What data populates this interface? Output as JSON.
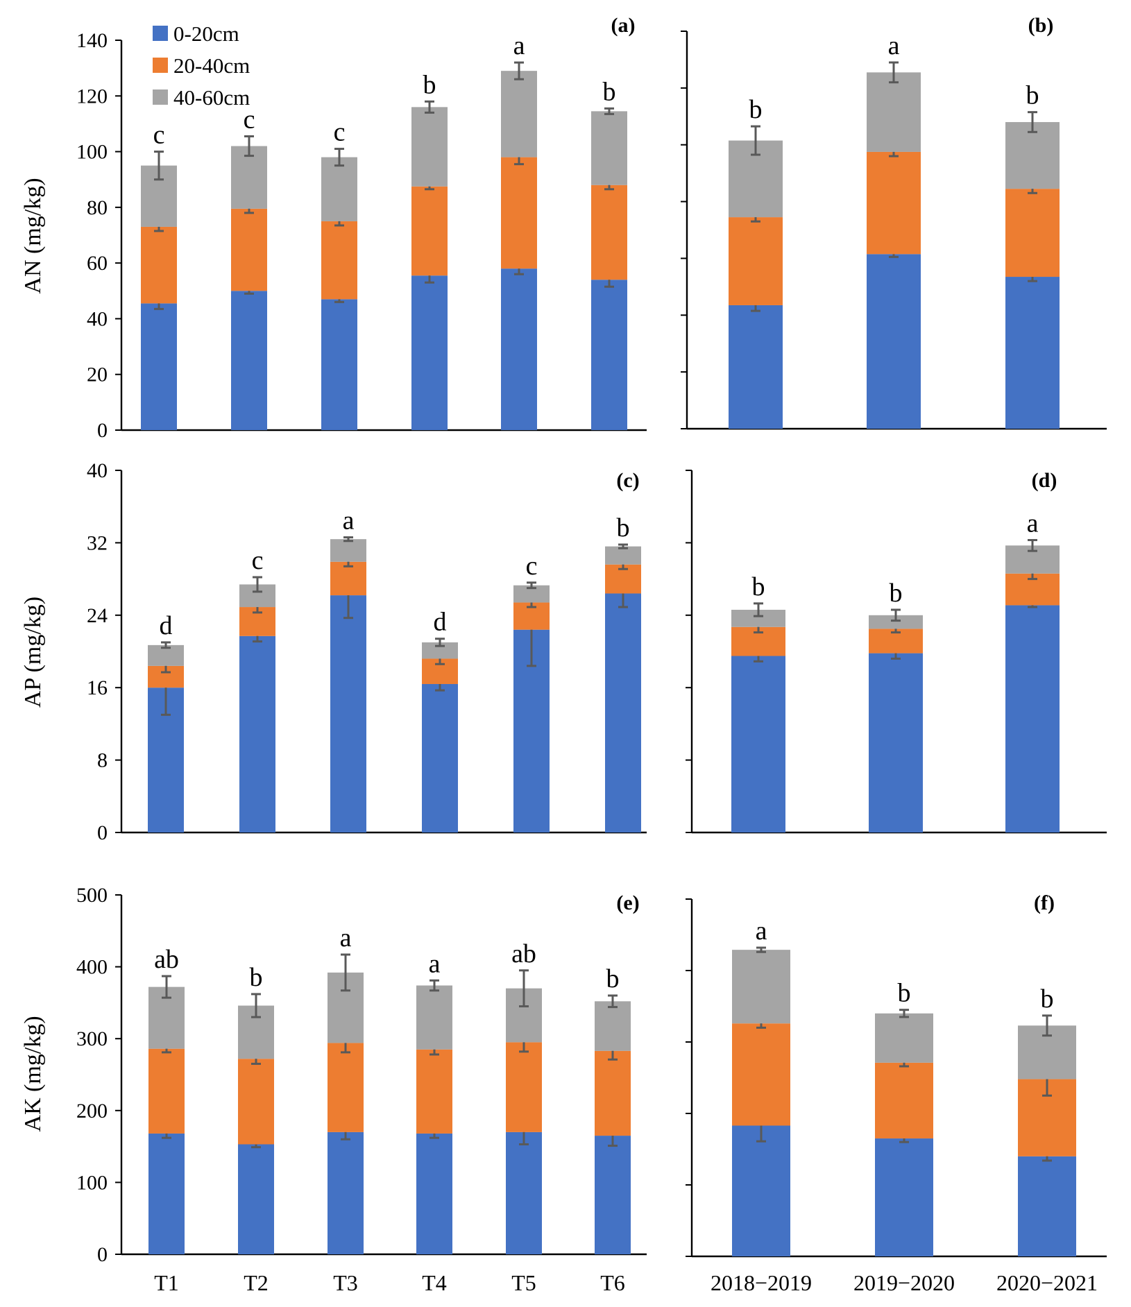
{
  "legend": [
    {
      "label": "0-20cm",
      "color": "#4472C4"
    },
    {
      "label": "20-40cm",
      "color": "#ED7D31"
    },
    {
      "label": "40-60cm",
      "color": "#A5A5A5"
    }
  ],
  "chart_data": [
    {
      "id": "a",
      "panel": "(a)",
      "type": "bar",
      "stacked": true,
      "ylabel": "AN (mg/kg)",
      "ylim": [
        0,
        140
      ],
      "yticks": [
        0,
        20,
        40,
        60,
        80,
        100,
        120,
        140
      ],
      "categories": [
        "T1",
        "T2",
        "T3",
        "T4",
        "T5",
        "T6"
      ],
      "series": [
        {
          "name": "0-20cm",
          "values": [
            45.5,
            50,
            47,
            55.5,
            58,
            54
          ],
          "errors": [
            2,
            1,
            1,
            2.5,
            2,
            2.5
          ]
        },
        {
          "name": "20-40cm",
          "values": [
            27.5,
            29.5,
            28,
            32,
            40,
            34
          ],
          "errors": [
            1.5,
            1.5,
            1.5,
            1,
            2.5,
            1.5
          ]
        },
        {
          "name": "40-60cm",
          "values": [
            22,
            22.5,
            23,
            28.5,
            31,
            26.5
          ],
          "errors": [
            5,
            3.5,
            3,
            2,
            3,
            1
          ]
        }
      ],
      "letters": [
        "c",
        "c",
        "c",
        "b",
        "a",
        "b"
      ]
    },
    {
      "id": "b",
      "panel": "(b)",
      "type": "bar",
      "stacked": true,
      "ylim": [
        0,
        140
      ],
      "yticks": [
        0,
        20,
        40,
        60,
        80,
        100,
        120,
        140
      ],
      "show_tick_labels": false,
      "categories": [
        "2018−2019",
        "2019−2020",
        "2020−2021"
      ],
      "series": [
        {
          "name": "0-20cm",
          "values": [
            43.5,
            61.5,
            53.5
          ],
          "errors": [
            2,
            1,
            1.5
          ]
        },
        {
          "name": "20-40cm",
          "values": [
            31,
            36,
            31
          ],
          "errors": [
            1.5,
            1.5,
            1.5
          ]
        },
        {
          "name": "40-60cm",
          "values": [
            27,
            28,
            23.5
          ],
          "errors": [
            5,
            3.5,
            3.5
          ]
        }
      ],
      "letters": [
        "b",
        "a",
        "b"
      ]
    },
    {
      "id": "c",
      "panel": "(c)",
      "type": "bar",
      "stacked": true,
      "ylabel": "AP (mg/kg)",
      "ylim": [
        0,
        40
      ],
      "yticks": [
        0,
        8,
        16,
        24,
        32,
        40
      ],
      "categories": [
        "T1",
        "T2",
        "T3",
        "T4",
        "T5",
        "T6"
      ],
      "series": [
        {
          "name": "0-20cm",
          "values": [
            16,
            21.7,
            26.2,
            16.4,
            22.4,
            26.4
          ],
          "errors": [
            3,
            0.6,
            2.5,
            0.7,
            4,
            1.5
          ]
        },
        {
          "name": "20-40cm",
          "values": [
            2.4,
            3.2,
            3.7,
            2.8,
            3,
            3.2
          ],
          "errors": [
            0.7,
            0.6,
            0.5,
            0.6,
            0.5,
            0.5
          ]
        },
        {
          "name": "40-60cm",
          "values": [
            2.3,
            2.5,
            2.5,
            1.8,
            1.9,
            2
          ],
          "errors": [
            0.3,
            0.8,
            0.2,
            0.4,
            0.3,
            0.2
          ]
        }
      ],
      "letters": [
        "d",
        "c",
        "a",
        "d",
        "c",
        "b"
      ]
    },
    {
      "id": "d",
      "panel": "(d)",
      "type": "bar",
      "stacked": true,
      "ylim": [
        0,
        40
      ],
      "yticks": [
        0,
        8,
        16,
        24,
        32,
        40
      ],
      "show_tick_labels": false,
      "categories": [
        "2018−2019",
        "2019−2020",
        "2020−2021"
      ],
      "series": [
        {
          "name": "0-20cm",
          "values": [
            19.5,
            19.8,
            25.1
          ],
          "errors": [
            0.6,
            0.6,
            0.2
          ]
        },
        {
          "name": "20-40cm",
          "values": [
            3.2,
            2.7,
            3.5
          ],
          "errors": [
            0.6,
            0.4,
            0.6
          ]
        },
        {
          "name": "40-60cm",
          "values": [
            1.9,
            1.5,
            3.1
          ],
          "errors": [
            0.7,
            0.6,
            0.6
          ]
        }
      ],
      "letters": [
        "b",
        "b",
        "a"
      ]
    },
    {
      "id": "e",
      "panel": "(e)",
      "type": "bar",
      "stacked": true,
      "ylabel": "AK (mg/kg)",
      "ylim": [
        0,
        500
      ],
      "yticks": [
        0,
        100,
        200,
        300,
        400,
        500
      ],
      "categories": [
        "T1",
        "T2",
        "T3",
        "T4",
        "T5",
        "T6"
      ],
      "series": [
        {
          "name": "0-20cm",
          "values": [
            168,
            153,
            170,
            168,
            170,
            165
          ],
          "errors": [
            6,
            4,
            10,
            6,
            17,
            14
          ]
        },
        {
          "name": "20-40cm",
          "values": [
            118,
            119,
            124,
            117,
            125,
            118
          ],
          "errors": [
            5,
            7,
            13,
            7,
            13,
            12
          ]
        },
        {
          "name": "40-60cm",
          "values": [
            86,
            74,
            98,
            89,
            75,
            69
          ],
          "errors": [
            15,
            16,
            25,
            7,
            25,
            8
          ]
        }
      ],
      "letters": [
        "ab",
        "b",
        "a",
        "a",
        "ab",
        "b"
      ]
    },
    {
      "id": "f",
      "panel": "(f)",
      "type": "bar",
      "stacked": true,
      "ylim": [
        0,
        500
      ],
      "yticks": [
        0,
        100,
        200,
        300,
        400,
        500
      ],
      "show_tick_labels": false,
      "categories": [
        "2018−2019",
        "2019−2020",
        "2020−2021"
      ],
      "series": [
        {
          "name": "0-20cm",
          "values": [
            183,
            165,
            140
          ],
          "errors": [
            22,
            5,
            6
          ]
        },
        {
          "name": "20-40cm",
          "values": [
            143,
            106,
            108
          ],
          "errors": [
            6,
            5,
            23
          ]
        },
        {
          "name": "40-60cm",
          "values": [
            103,
            69,
            75
          ],
          "errors": [
            3,
            5,
            14
          ]
        }
      ],
      "letters": [
        "a",
        "b",
        "b"
      ]
    }
  ]
}
